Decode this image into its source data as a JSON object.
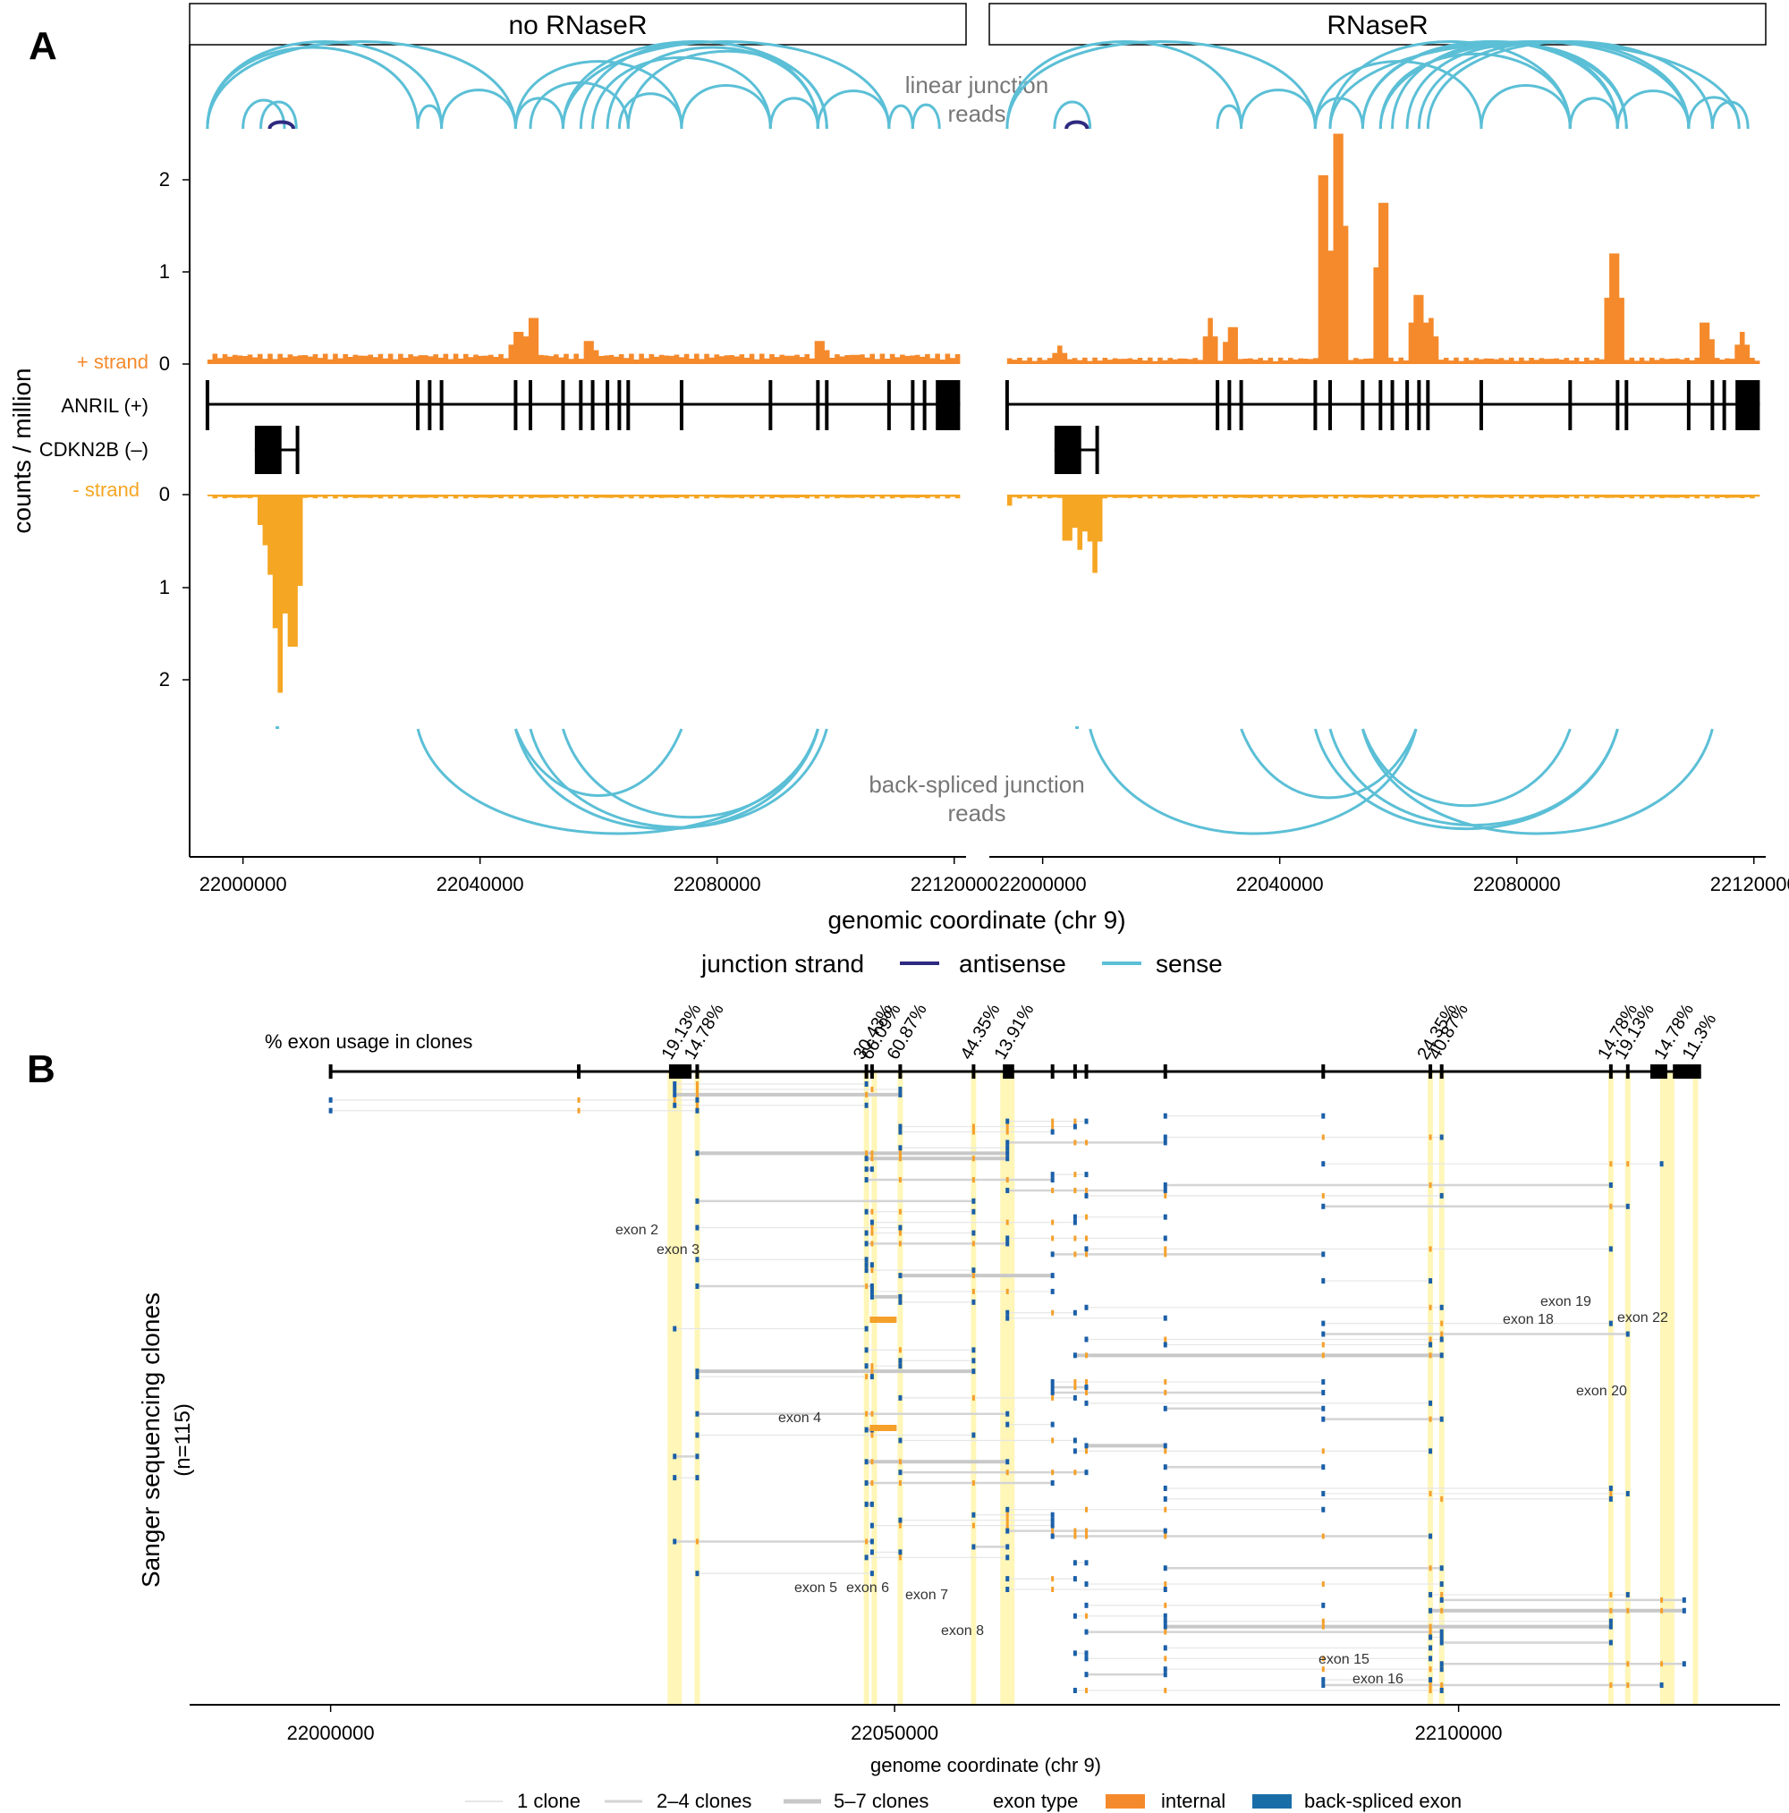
{
  "panel_a": {
    "letter": "A",
    "facets": [
      "no RNaseR",
      "RNaseR"
    ],
    "y_axis_title": "counts / million",
    "x_axis_title": "genomic coordinate (chr 9)",
    "linear_note": [
      "linear junction",
      "reads"
    ],
    "backsplice_note": [
      "back-spliced junction",
      "reads"
    ],
    "track_labels": {
      "plus": "+ strand",
      "anril": "ANRIL (+)",
      "cdkn2b": "CDKN2B (–)",
      "minus": "- strand"
    },
    "legend": {
      "title": "junction strand",
      "antisense": "antisense",
      "sense": "sense"
    }
  },
  "panel_b": {
    "letter": "B",
    "exon_usage_title": "% exon usage in clones",
    "y_axis_title": "Sanger sequencing clones",
    "y_axis_subtitle": "(n=115)",
    "x_axis_title": "genome coordinate (chr 9)",
    "legend": {
      "one": "1 clone",
      "two_four": "2–4 clones",
      "five_seven": "5–7 clones",
      "exon_type_title": "exon type",
      "internal": "internal",
      "back_spliced": "back-spliced exon"
    },
    "exon_labels": {
      "e2": "exon 2",
      "e3": "exon 3",
      "e4": "exon 4",
      "e5": "exon 5",
      "e6": "exon 6",
      "e7": "exon 7",
      "e8": "exon 8",
      "e15": "exon 15",
      "e16": "exon 16",
      "e18": "exon 18",
      "e19": "exon 19",
      "e20": "exon 20",
      "e22": "exon 22"
    }
  },
  "colors": {
    "plus_strand": "#f58a2c",
    "minus_strand": "#f5a623",
    "sense": "#5bbfd6",
    "antisense": "#2e2a80",
    "highlight": "#fff6b8",
    "backspliced": "#1a5fa8",
    "internal": "#f5a02a"
  },
  "chart_data": [
    {
      "type": "area",
      "name": "panel A coverage",
      "title": "",
      "xlabel": "genomic coordinate (chr 9)",
      "ylabel": "counts / million",
      "facets": [
        "no RNaseR",
        "RNaseR"
      ],
      "x_ticks": [
        22000000,
        22040000,
        22080000,
        22120000
      ],
      "x_tick_labels": [
        "22000000",
        "22040000",
        "22080000",
        "22120000"
      ],
      "xlim": [
        21991000,
        22122000
      ],
      "plus_y_ticks": [
        0,
        1,
        2
      ],
      "minus_y_ticks": [
        0,
        1,
        2
      ],
      "plus_strand": {
        "no RNaseR": {
          "bg": 0.08,
          "peaks": [
            [
              22046000,
              0.35
            ],
            [
              22048500,
              0.5
            ],
            [
              22058000,
              0.25
            ],
            [
              22097000,
              0.25
            ],
            [
              22103000,
              0.1
            ]
          ]
        },
        "RNaseR": {
          "bg": 0.05,
          "peaks": [
            [
              22002500,
              0.2
            ],
            [
              22028000,
              0.5
            ],
            [
              22031500,
              0.4
            ],
            [
              22047000,
              2.05
            ],
            [
              22049500,
              2.5
            ],
            [
              22057000,
              1.75
            ],
            [
              22063000,
              0.75
            ],
            [
              22065000,
              0.5
            ],
            [
              22096000,
              1.2
            ],
            [
              22111500,
              0.45
            ],
            [
              22117500,
              0.35
            ]
          ]
        }
      },
      "minus_strand": {
        "no RNaseR": {
          "bg": 0.03,
          "peaks": [
            [
              22003500,
              0.55
            ],
            [
              22005000,
              1.45
            ],
            [
              22006000,
              2.15
            ],
            [
              22008000,
              1.65
            ]
          ]
        },
        "RNaseR": {
          "bg": 0.03,
          "peaks": [
            [
              21993000,
              0.2
            ],
            [
              22004000,
              0.5
            ],
            [
              22006000,
              0.6
            ],
            [
              22007200,
              0.4
            ],
            [
              22008500,
              0.85
            ]
          ]
        }
      },
      "anril_exons": [
        21994000,
        22029500,
        22031500,
        22033500,
        22046000,
        22048500,
        22054000,
        22057000,
        22059000,
        22061500,
        22063500,
        22065000,
        22074000,
        22089000,
        22097000,
        22098500,
        22109000,
        22113000,
        22115000,
        22117500,
        22119000
      ],
      "cdkn2b_span": [
        22002000,
        22009500
      ],
      "linear_junctions": {
        "no RNaseR": {
          "sense": [
            [
              21994000,
              22029500
            ],
            [
              21994000,
              22033500
            ],
            [
              21994000,
              22046000
            ],
            [
              22000000,
              22007000
            ],
            [
              22003000,
              22009000
            ],
            [
              22029500,
              22033500
            ],
            [
              22033500,
              22046000
            ],
            [
              22046000,
              22054000
            ],
            [
              22046000,
              22074000
            ],
            [
              22054000,
              22098500
            ],
            [
              22057000,
              22097000
            ],
            [
              22059000,
              22089000
            ],
            [
              22061500,
              22097000
            ],
            [
              22063500,
              22074000
            ],
            [
              22065000,
              22098500
            ],
            [
              22074000,
              22089000
            ],
            [
              22089000,
              22097000
            ],
            [
              22097000,
              22109000
            ],
            [
              22109000,
              22113000
            ],
            [
              22113000,
              22117500
            ],
            [
              22048500,
              22065000
            ],
            [
              22054000,
              22109000
            ]
          ],
          "antisense": [
            [
              22004500,
              22008500
            ]
          ]
        },
        "RNaseR": {
          "sense": [
            [
              21994000,
              22033500
            ],
            [
              21994000,
              22046000
            ],
            [
              22002000,
              22008000
            ],
            [
              22029500,
              22033500
            ],
            [
              22033500,
              22046000
            ],
            [
              22046000,
              22054000
            ],
            [
              22046000,
              22074000
            ],
            [
              22048500,
              22089000
            ],
            [
              22054000,
              22097000
            ],
            [
              22054000,
              22098500
            ],
            [
              22057000,
              22109000
            ],
            [
              22059000,
              22097000
            ],
            [
              22061500,
              22098500
            ],
            [
              22063500,
              22109000
            ],
            [
              22065000,
              22113000
            ],
            [
              22074000,
              22089000
            ],
            [
              22089000,
              22097000
            ],
            [
              22097000,
              22109000
            ],
            [
              22109000,
              22117500
            ],
            [
              22113000,
              22119000
            ],
            [
              22048500,
              22117500
            ],
            [
              22057000,
              22089000
            ]
          ],
          "antisense": [
            [
              22004000,
              22007500
            ]
          ]
        }
      },
      "backspliced_junctions": {
        "no RNaseR": [
          [
            22029500,
            22097000
          ],
          [
            22046000,
            22074000
          ],
          [
            22048500,
            22098500
          ],
          [
            22054000,
            22097000
          ],
          [
            22046000,
            22097000
          ]
        ],
        "RNaseR": [
          [
            22008000,
            22063000
          ],
          [
            22033500,
            22063000
          ],
          [
            22046000,
            22097000
          ],
          [
            22054000,
            22113000
          ],
          [
            22048500,
            22097000
          ],
          [
            22054000,
            22089000
          ]
        ]
      }
    },
    {
      "type": "table",
      "name": "panel B Sanger clones",
      "xlabel": "genome coordinate (chr 9)",
      "ylabel": "Sanger sequencing clones (n=115)",
      "x_ticks": [
        22000000,
        22050000,
        22100000
      ],
      "x_tick_labels": [
        "22000000",
        "22050000",
        "22100000"
      ],
      "xlim": [
        21987500,
        22128500
      ],
      "n_clones": 115,
      "exon_positions": [
        22000000,
        22022000,
        22030500,
        22032500,
        22047500,
        22048000,
        22050500,
        22057000,
        22060000,
        22064000,
        22066000,
        22067000,
        22074000,
        22088000,
        22097500,
        22098500,
        22113500,
        22115000,
        22118000,
        22120000
      ],
      "exon_usage": [
        {
          "exon": "exon 2",
          "pct": "19.13%",
          "pos": 22030500
        },
        {
          "exon": "exon 3",
          "pct": "14.78%",
          "pos": 22032500
        },
        {
          "exon": "exon 4",
          "pct": "30.43%",
          "pos": 22047500
        },
        {
          "exon": "exon 5",
          "pct": "66.09%",
          "pos": 22048200
        },
        {
          "exon": "exon 6",
          "pct": "60.87%",
          "pos": 22050500
        },
        {
          "exon": "exon 7",
          "pct": "44.35%",
          "pos": 22057000
        },
        {
          "exon": "exon 8",
          "pct": "13.91%",
          "pos": 22060000
        },
        {
          "exon": "exon 15",
          "pct": "24.35%",
          "pos": 22097500
        },
        {
          "exon": "exon 16",
          "pct": "40.87%",
          "pos": 22098500
        },
        {
          "exon": "exon 18",
          "pct": "14.78%",
          "pos": 22113500
        },
        {
          "exon": "exon 19",
          "pct": "19.13%",
          "pos": 22115000
        },
        {
          "exon": "exon 20",
          "pct": "14.78%",
          "pos": 22118500
        },
        {
          "exon": "exon 22",
          "pct": "11.3%",
          "pos": 22121000
        }
      ]
    }
  ]
}
